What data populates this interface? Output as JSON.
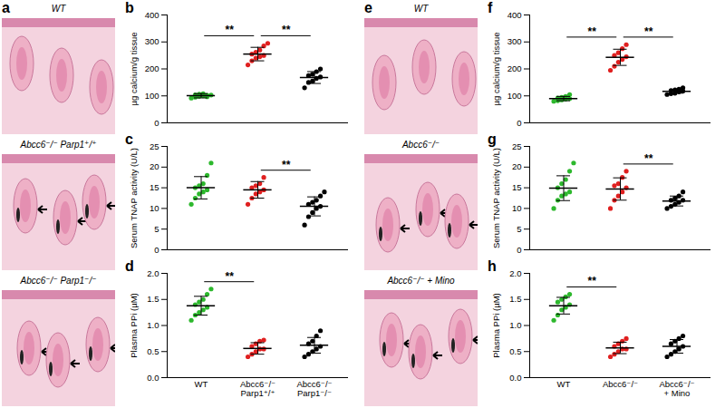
{
  "panels": [
    {
      "label": "a",
      "images": [
        "WT",
        "Abcc6⁻/⁻ Parp1⁺/⁺",
        "Abcc6⁻/⁻ Parp1⁻/⁻"
      ]
    },
    {
      "label": "e",
      "images": [
        "WT",
        "Abcc6⁻/⁻",
        "Abcc6⁻/⁻ + Mino"
      ]
    }
  ],
  "chart_data": [
    {
      "type": "scatter",
      "title": "b",
      "ylabel": "µg calcium/g tissue",
      "categories": [
        null,
        null,
        null
      ],
      "colors": [
        "#2db82d",
        "#e02020",
        "#000000"
      ],
      "points": [
        [
          92,
          95,
          98,
          100,
          102,
          104,
          106,
          108,
          97,
          103
        ],
        [
          215,
          230,
          240,
          245,
          250,
          255,
          262,
          270,
          285,
          295
        ],
        [
          130,
          150,
          155,
          165,
          170,
          175,
          180,
          190,
          200
        ]
      ],
      "values": [
        100.5,
        255,
        168
      ],
      "sd": [
        8,
        25,
        22
      ],
      "ylim": [
        0,
        400
      ],
      "yticks": [
        0,
        100,
        200,
        300,
        400
      ],
      "tick_labels": "y",
      "significance": [
        {
          "from": 0,
          "to": 1,
          "text": "**"
        },
        {
          "from": 1,
          "to": 2,
          "text": "**"
        }
      ]
    },
    {
      "type": "scatter",
      "title": "c",
      "ylabel": "Serum TNAP activity (U/L)",
      "categories": [
        null,
        null,
        null
      ],
      "colors": [
        "#2db82d",
        "#e02020",
        "#000000"
      ],
      "points": [
        [
          11,
          12.5,
          13.5,
          14,
          14.5,
          15,
          15.5,
          16,
          18,
          21
        ],
        [
          11,
          12.5,
          13.5,
          14,
          14.5,
          15,
          15.5,
          16,
          17.5
        ],
        [
          6,
          8,
          9,
          10,
          10.5,
          11,
          11.5,
          12,
          13,
          14
        ]
      ],
      "values": [
        15,
        14.5,
        10.5
      ],
      "sd": [
        2.7,
        2,
        2.3
      ],
      "ylim": [
        0,
        25
      ],
      "yticks": [
        0,
        5,
        10,
        15,
        20,
        25
      ],
      "tick_labels": "y",
      "significance": [
        {
          "from": 1,
          "to": 2,
          "text": "**"
        }
      ]
    },
    {
      "type": "scatter",
      "title": "d",
      "ylabel": "Plasma PPi (µM)",
      "categories": [
        "WT",
        "Abcc6⁻/⁻\nParp1⁺/⁺",
        "Abcc6⁻/⁻\nParp1⁻/⁻"
      ],
      "colors": [
        "#2db82d",
        "#e02020",
        "#000000"
      ],
      "points": [
        [
          1.1,
          1.2,
          1.25,
          1.3,
          1.35,
          1.4,
          1.45,
          1.5,
          1.6,
          1.7
        ],
        [
          0.4,
          0.45,
          0.5,
          0.55,
          0.55,
          0.6,
          0.65,
          0.7,
          0.72
        ],
        [
          0.4,
          0.45,
          0.5,
          0.55,
          0.6,
          0.65,
          0.7,
          0.8,
          0.9
        ]
      ],
      "values": [
        1.38,
        0.56,
        0.62
      ],
      "sd": [
        0.18,
        0.11,
        0.15
      ],
      "ylim": [
        0,
        2
      ],
      "yticks": [
        {
          "value": 0,
          "label": "0.0"
        },
        {
          "value": 0.5,
          "label": "0.5"
        },
        {
          "value": 1,
          "label": "1.0"
        },
        {
          "value": 1.5,
          "label": "1.5"
        },
        {
          "value": 2,
          "label": "2.0"
        }
      ],
      "significance": [
        {
          "from": 0,
          "to": 1,
          "text": "**"
        }
      ]
    },
    {
      "type": "scatter",
      "title": "f",
      "ylabel": "µg calcium/g tissue",
      "categories": [
        null,
        null,
        null
      ],
      "colors": [
        "#2db82d",
        "#e02020",
        "#000000"
      ],
      "points": [
        [
          80,
          82,
          85,
          88,
          90,
          92,
          95,
          98,
          105
        ],
        [
          195,
          210,
          225,
          235,
          245,
          250,
          260,
          275,
          290
        ],
        [
          105,
          108,
          110,
          115,
          118,
          120,
          122,
          125,
          130
        ]
      ],
      "values": [
        90,
        243,
        117
      ],
      "sd": [
        8,
        30,
        7
      ],
      "ylim": [
        0,
        400
      ],
      "yticks": [
        0,
        100,
        200,
        300,
        400
      ],
      "tick_labels": "y",
      "significance": [
        {
          "from": 0,
          "to": 1,
          "text": "**"
        },
        {
          "from": 1,
          "to": 2,
          "text": "**"
        }
      ]
    },
    {
      "type": "scatter",
      "title": "g",
      "ylabel": "Serum TNAP activity (U/L)",
      "categories": [
        null,
        null,
        null
      ],
      "colors": [
        "#2db82d",
        "#e02020",
        "#000000"
      ],
      "points": [
        [
          10,
          12,
          13,
          13.5,
          14,
          15,
          16,
          17,
          19,
          21
        ],
        [
          10,
          12,
          13,
          14,
          15,
          15.5,
          16,
          17.5,
          19
        ],
        [
          10,
          10.5,
          11,
          11.5,
          12,
          12,
          12.5,
          13,
          14
        ]
      ],
      "values": [
        14.9,
        14.7,
        11.8
      ],
      "sd": [
        3,
        2.7,
        1.2
      ],
      "ylim": [
        0,
        25
      ],
      "yticks": [
        0,
        5,
        10,
        15,
        20,
        25
      ],
      "tick_labels": "y",
      "significance": [
        {
          "from": 1,
          "to": 2,
          "text": "**"
        }
      ]
    },
    {
      "type": "scatter",
      "title": "h",
      "ylabel": "Plasma PPi (µM)",
      "categories": [
        "WT",
        "Abcc6⁻/⁻",
        "Abcc6⁻/⁻\n+ Mino"
      ],
      "colors": [
        "#2db82d",
        "#e02020",
        "#000000"
      ],
      "points": [
        [
          1.1,
          1.2,
          1.3,
          1.35,
          1.4,
          1.45,
          1.5,
          1.55,
          1.6
        ],
        [
          0.4,
          0.45,
          0.5,
          0.55,
          0.55,
          0.6,
          0.65,
          0.7,
          0.75
        ],
        [
          0.4,
          0.45,
          0.5,
          0.55,
          0.6,
          0.65,
          0.7,
          0.75,
          0.8
        ]
      ],
      "values": [
        1.38,
        0.57,
        0.6
      ],
      "sd": [
        0.16,
        0.11,
        0.13
      ],
      "ylim": [
        0,
        2
      ],
      "yticks": [
        {
          "value": 0,
          "label": "0.0"
        },
        {
          "value": 0.5,
          "label": "0.5"
        },
        {
          "value": 1,
          "label": "1.0"
        },
        {
          "value": 1.5,
          "label": "1.5"
        },
        {
          "value": 2,
          "label": "2.0"
        }
      ],
      "significance": [
        {
          "from": 0,
          "to": 1,
          "text": "**"
        }
      ]
    }
  ]
}
